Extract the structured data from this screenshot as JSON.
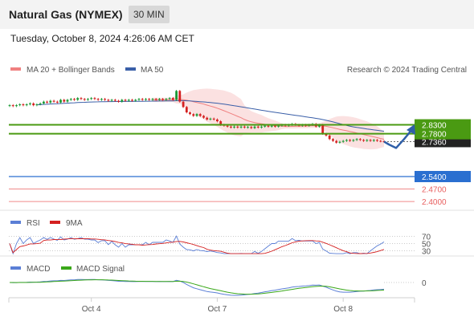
{
  "header": {
    "title": "Natural Gas (NYMEX)",
    "timeframe": "30 MIN"
  },
  "datetime": "Tuesday, October 8, 2024 4:26:06 AM CET",
  "legend": {
    "bollinger": "MA 20 + Bollinger Bands",
    "ma50": "MA 50",
    "credit": "Research © 2024 Trading Central",
    "rsi": "RSI",
    "ma9": "9MA",
    "macd": "MACD",
    "macd_signal": "MACD Signal"
  },
  "colors": {
    "bollinger": "#f08080",
    "ma50": "#3a5fa8",
    "green_level": "#4a9a12",
    "blue_level": "#2a6fd0",
    "red_level": "#e86060",
    "rsi": "#5b7fd6",
    "ma9": "#d42020",
    "macd": "#5b7fd6",
    "macd_signal": "#3aa81a"
  },
  "chart_data": [
    {
      "type": "candlestick",
      "levels": [
        {
          "value": 2.83,
          "label": "2.8300",
          "style": "green-line"
        },
        {
          "value": 2.78,
          "label": "2.7800",
          "style": "green-line"
        },
        {
          "value": 2.736,
          "label": "2.7360",
          "style": "current-price"
        },
        {
          "value": 2.54,
          "label": "2.5400",
          "style": "blue-line"
        },
        {
          "value": 2.47,
          "label": "2.4700",
          "style": "red-line"
        },
        {
          "value": 2.4,
          "label": "2.4000",
          "style": "red-line"
        }
      ],
      "x_ticks": [
        "Oct 4",
        "Oct 7",
        "Oct 8"
      ],
      "series": [
        {
          "name": "MA 20 + Bollinger Bands"
        },
        {
          "name": "MA 50"
        }
      ],
      "close": [
        2.94,
        2.935,
        2.94,
        2.945,
        2.94,
        2.945,
        2.95,
        2.94,
        2.945,
        2.95,
        2.96,
        2.955,
        2.965,
        2.96,
        2.955,
        2.97,
        2.96,
        2.97,
        2.975,
        2.97,
        2.98,
        2.975,
        2.97,
        2.975,
        2.98,
        2.975,
        2.97,
        2.975,
        2.97,
        2.965,
        2.97,
        2.965,
        2.96,
        2.97,
        2.965,
        2.97,
        2.965,
        2.97,
        2.975,
        2.97,
        2.975,
        2.97,
        2.975,
        2.97,
        2.975,
        2.97,
        2.975,
        2.98,
        2.97,
        3.02,
        2.96,
        2.93,
        2.9,
        2.89,
        2.88,
        2.89,
        2.88,
        2.87,
        2.86,
        2.865,
        2.86,
        2.85,
        2.83,
        2.825,
        2.82,
        2.815,
        2.82,
        2.815,
        2.82,
        2.815,
        2.818,
        2.812,
        2.82,
        2.815,
        2.82,
        2.825,
        2.82,
        2.825,
        2.82,
        2.825,
        2.83,
        2.825,
        2.83,
        2.835,
        2.83,
        2.825,
        2.83,
        2.825,
        2.83,
        2.835,
        2.82,
        2.83,
        2.78,
        2.77,
        2.75,
        2.74,
        2.73,
        2.735,
        2.74,
        2.745,
        2.74,
        2.745,
        2.75,
        2.745,
        2.74,
        2.745,
        2.74,
        2.745,
        2.74,
        2.738,
        2.736
      ],
      "forecast": [
        2.736,
        2.72,
        2.7,
        2.75,
        2.81
      ],
      "ylim": [
        2.36,
        3.08
      ]
    },
    {
      "type": "line",
      "title": "RSI",
      "levels": [
        70,
        50,
        30
      ],
      "ylim": [
        20,
        80
      ]
    },
    {
      "type": "line",
      "title": "MACD",
      "levels": [
        0
      ]
    }
  ]
}
